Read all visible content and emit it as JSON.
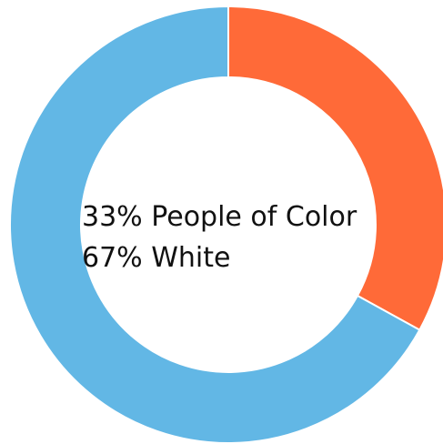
{
  "chart_data": {
    "type": "pie",
    "donut": true,
    "categories": [
      "People of Color",
      "White"
    ],
    "values": [
      33,
      67
    ],
    "colors": [
      "#ff6a38",
      "#62b7e5"
    ],
    "center_labels": [
      "33% People of Color",
      "67% White"
    ]
  }
}
